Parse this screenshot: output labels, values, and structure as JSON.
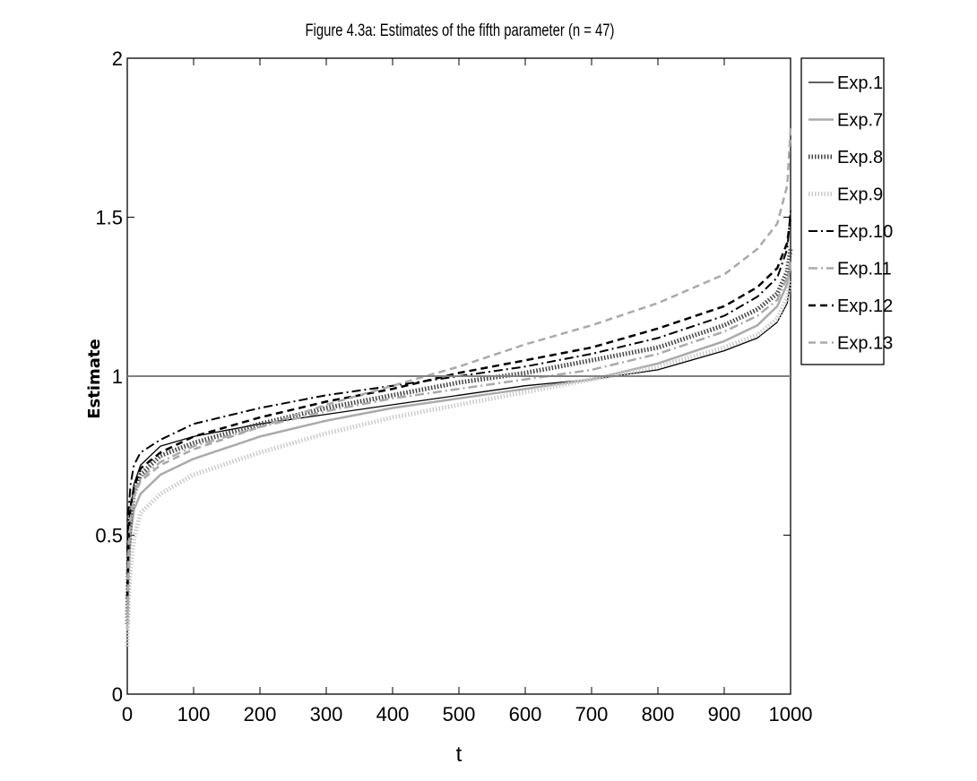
{
  "chart_data": {
    "type": "line",
    "title": "Figure 4.3a: Estimates of the fifth parameter (n = 47)",
    "xlabel": "t",
    "ylabel": "Estimate",
    "xlim": [
      0,
      1000
    ],
    "ylim": [
      0,
      2
    ],
    "xticks": [
      0,
      100,
      200,
      300,
      400,
      500,
      600,
      700,
      800,
      900,
      1000
    ],
    "yticks": [
      0,
      0.5,
      1,
      1.5,
      2
    ],
    "ytick_labels": [
      "0",
      "0.5",
      "1",
      "1.5",
      "2"
    ],
    "grid": false,
    "legend_position": "outside-right-top",
    "reference_line": {
      "y": 1,
      "color": "#808080"
    },
    "x": [
      0,
      2,
      5,
      10,
      20,
      50,
      100,
      200,
      300,
      400,
      500,
      600,
      700,
      800,
      900,
      950,
      980,
      995,
      1000
    ],
    "series": [
      {
        "name": "Exp.1",
        "color": "#000000",
        "style": "solid",
        "width": 1.3,
        "values": [
          0.25,
          0.45,
          0.58,
          0.66,
          0.72,
          0.78,
          0.81,
          0.85,
          0.88,
          0.91,
          0.94,
          0.97,
          0.99,
          1.02,
          1.08,
          1.12,
          1.17,
          1.23,
          1.3
        ]
      },
      {
        "name": "Exp.7",
        "color": "#aaaaaa",
        "style": "solid",
        "width": 2.5,
        "values": [
          0.2,
          0.38,
          0.5,
          0.58,
          0.63,
          0.69,
          0.74,
          0.81,
          0.86,
          0.9,
          0.93,
          0.96,
          0.99,
          1.04,
          1.11,
          1.16,
          1.22,
          1.29,
          1.35
        ]
      },
      {
        "name": "Exp.8",
        "color": "#444444",
        "style": "hatched",
        "width": 5,
        "values": [
          0.22,
          0.45,
          0.56,
          0.63,
          0.69,
          0.75,
          0.79,
          0.85,
          0.9,
          0.94,
          0.98,
          1.01,
          1.05,
          1.09,
          1.16,
          1.21,
          1.26,
          1.33,
          1.4
        ]
      },
      {
        "name": "Exp.9",
        "color": "#cccccc",
        "style": "hatched",
        "width": 5,
        "values": [
          0.15,
          0.3,
          0.4,
          0.49,
          0.57,
          0.63,
          0.69,
          0.76,
          0.82,
          0.87,
          0.91,
          0.95,
          0.99,
          1.03,
          1.09,
          1.13,
          1.18,
          1.25,
          1.3
        ]
      },
      {
        "name": "Exp.10",
        "color": "#000000",
        "style": "dashdot",
        "width": 2,
        "values": [
          0.45,
          0.58,
          0.66,
          0.72,
          0.76,
          0.8,
          0.85,
          0.9,
          0.94,
          0.97,
          1.0,
          1.03,
          1.07,
          1.12,
          1.19,
          1.25,
          1.31,
          1.4,
          1.52
        ]
      },
      {
        "name": "Exp.11",
        "color": "#aaaaaa",
        "style": "dashdot",
        "width": 2.5,
        "values": [
          0.3,
          0.48,
          0.57,
          0.63,
          0.68,
          0.73,
          0.78,
          0.84,
          0.89,
          0.93,
          0.96,
          0.99,
          1.02,
          1.07,
          1.14,
          1.19,
          1.24,
          1.31,
          1.36
        ]
      },
      {
        "name": "Exp.12",
        "color": "#000000",
        "style": "dashed",
        "width": 2.5,
        "values": [
          0.3,
          0.5,
          0.59,
          0.65,
          0.71,
          0.76,
          0.81,
          0.87,
          0.92,
          0.96,
          1.01,
          1.05,
          1.09,
          1.15,
          1.22,
          1.28,
          1.34,
          1.42,
          1.5
        ]
      },
      {
        "name": "Exp.13",
        "color": "#aaaaaa",
        "style": "dashed",
        "width": 2.5,
        "values": [
          0.25,
          0.45,
          0.55,
          0.62,
          0.67,
          0.72,
          0.77,
          0.84,
          0.91,
          0.97,
          1.03,
          1.1,
          1.16,
          1.23,
          1.32,
          1.4,
          1.48,
          1.6,
          1.78
        ]
      }
    ]
  }
}
